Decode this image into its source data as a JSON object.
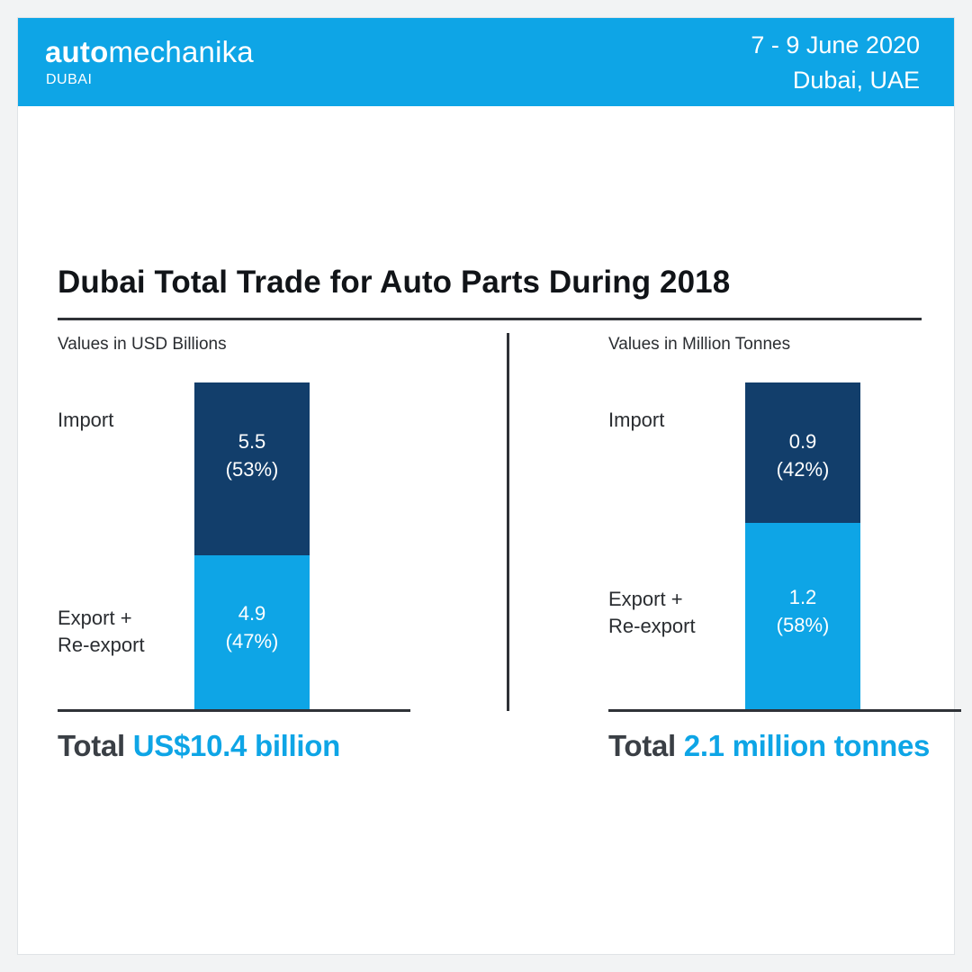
{
  "header": {
    "brand_bold": "auto",
    "brand_light": "mechanika",
    "brand_sub": "DUBAI",
    "date": "7 - 9 June 2020",
    "place": "Dubai, UAE"
  },
  "colors": {
    "accent": "#0ea5e6",
    "import": "#123e6b",
    "export": "#0ea5e6",
    "text": "#2a2d31"
  },
  "chart_data": [
    {
      "type": "bar",
      "stacked": true,
      "title": "Dubai Total Trade for Auto Parts During 2018",
      "unit_label": "Values in USD Billions",
      "segments": [
        {
          "name": "Import",
          "value": 5.5,
          "value_label": "5.5",
          "percent_label": "(53%)"
        },
        {
          "name": "Export +\nRe-export",
          "value": 4.9,
          "value_label": "4.9",
          "percent_label": "(47%)"
        }
      ],
      "total_word": "Total",
      "total_value": "US$10.4 billion"
    },
    {
      "type": "bar",
      "stacked": true,
      "title": "Dubai Total Trade for Auto Parts During 2018",
      "unit_label": "Values in Million Tonnes",
      "segments": [
        {
          "name": "Import",
          "value": 0.9,
          "value_label": "0.9",
          "percent_label": "(42%)"
        },
        {
          "name": "Export +\nRe-export",
          "value": 1.2,
          "value_label": "1.2",
          "percent_label": "(58%)"
        }
      ],
      "total_word": "Total",
      "total_value": "2.1 million tonnes"
    }
  ]
}
